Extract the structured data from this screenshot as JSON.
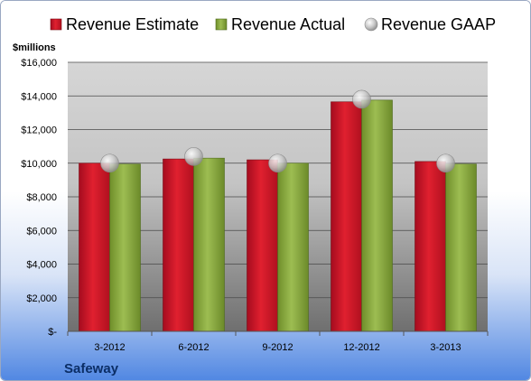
{
  "chart_data": {
    "type": "bar",
    "ylabel": "$millions",
    "categories": [
      "3-2012",
      "6-2012",
      "9-2012",
      "12-2012",
      "3-2013"
    ],
    "series": [
      {
        "name": "Revenue Estimate",
        "kind": "bar",
        "values": [
          10000,
          10250,
          10200,
          13650,
          10100
        ]
      },
      {
        "name": "Revenue Actual",
        "kind": "bar",
        "values": [
          9950,
          10300,
          10000,
          13750,
          9950
        ]
      },
      {
        "name": "Revenue GAAP",
        "kind": "marker",
        "values": [
          10000,
          10400,
          10000,
          13800,
          10000
        ]
      }
    ],
    "ylim": [
      0,
      16000
    ],
    "yticks": [
      {
        "value": 0,
        "label": "$-"
      },
      {
        "value": 2000,
        "label": "$2,000"
      },
      {
        "value": 4000,
        "label": "$4,000"
      },
      {
        "value": 6000,
        "label": "$6,000"
      },
      {
        "value": 8000,
        "label": "$8,000"
      },
      {
        "value": 10000,
        "label": "$10,000"
      },
      {
        "value": 12000,
        "label": "$12,000"
      },
      {
        "value": 14000,
        "label": "$14,000"
      },
      {
        "value": 16000,
        "label": "$16,000"
      }
    ],
    "grid": true,
    "legend": "top",
    "company": "Safeway",
    "colors": {
      "estimate": "#c8102e",
      "actual": "#8aab3d",
      "gaap": "#c0c0c0"
    }
  }
}
